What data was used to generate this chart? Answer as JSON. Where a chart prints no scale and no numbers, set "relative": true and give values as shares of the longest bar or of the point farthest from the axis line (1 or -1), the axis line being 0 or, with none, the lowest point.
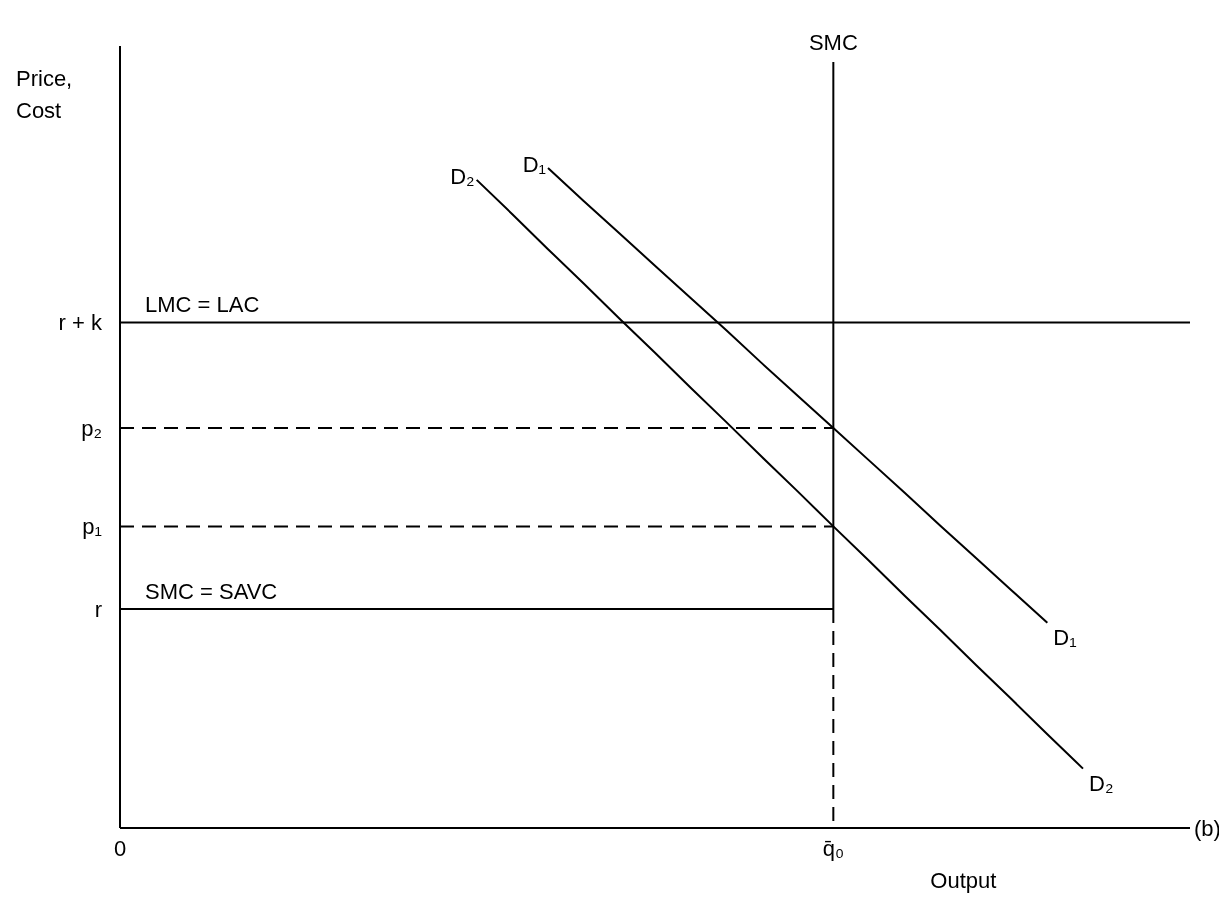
{
  "chart_data": {
    "type": "line",
    "relative": true,
    "xlabel": "Output",
    "ylabel": "Price, Cost",
    "categories": [
      "0",
      null,
      null,
      null,
      null,
      null,
      null,
      null,
      null,
      null,
      null,
      null,
      null,
      null,
      null,
      null,
      null,
      null,
      null,
      null,
      "q̄₀",
      null,
      null,
      null,
      null,
      null,
      null,
      null,
      null,
      null,
      null
    ],
    "series": [
      {
        "name": "SMC = SAVC",
        "color": "#000000",
        "values": [
          0.332,
          0.332,
          0.332,
          0.332,
          0.332,
          0.332,
          0.332,
          0.332,
          0.332,
          0.332,
          0.332,
          0.332,
          0.332,
          0.332,
          0.332,
          0.332,
          0.332,
          0.332,
          0.332,
          0.332,
          0.332,
          null,
          null,
          null,
          null,
          null,
          null,
          null,
          null,
          null,
          null
        ]
      },
      {
        "name": "LMC = LAC",
        "color": "#000000",
        "values": [
          0.766,
          0.766,
          0.766,
          0.766,
          0.766,
          0.766,
          0.766,
          0.766,
          0.766,
          0.766,
          0.766,
          0.766,
          0.766,
          0.766,
          0.766,
          0.766,
          0.766,
          0.766,
          0.766,
          0.766,
          0.766,
          0.766,
          0.766,
          0.766,
          0.766,
          0.766,
          0.766,
          0.766,
          0.766,
          0.766,
          0.766
        ]
      },
      {
        "name": "D₁",
        "color": "#000000",
        "values": [
          null,
          null,
          null,
          null,
          null,
          null,
          null,
          null,
          null,
          null,
          null,
          null,
          1.0,
          0.95,
          0.901,
          0.852,
          0.803,
          0.754,
          0.704,
          0.655,
          0.606,
          0.557,
          0.508,
          0.458,
          0.409,
          0.36,
          0.311,
          null,
          null,
          null,
          null
        ]
      },
      {
        "name": "D₂",
        "color": "#000000",
        "values": [
          null,
          null,
          null,
          null,
          null,
          null,
          null,
          null,
          null,
          null,
          0.982,
          0.93,
          0.877,
          0.825,
          0.772,
          0.72,
          0.667,
          0.615,
          0.562,
          0.51,
          0.457,
          0.405,
          0.352,
          0.3,
          0.247,
          0.195,
          0.142,
          0.09,
          null,
          null,
          null
        ]
      },
      {
        "color": "#000000",
        "line_style": "dashed",
        "values": [
          0.606,
          0.606,
          0.606,
          0.606,
          0.606,
          0.606,
          0.606,
          0.606,
          0.606,
          0.606,
          0.606,
          0.606,
          0.606,
          0.606,
          0.606,
          0.606,
          0.606,
          0.606,
          0.606,
          0.606,
          0.606,
          null,
          null,
          null,
          null,
          null,
          null,
          null,
          null,
          null,
          null
        ]
      },
      {
        "color": "#000000",
        "line_style": "dashed",
        "values": [
          0.457,
          0.457,
          0.457,
          0.457,
          0.457,
          0.457,
          0.457,
          0.457,
          0.457,
          0.457,
          0.457,
          0.457,
          0.457,
          0.457,
          0.457,
          0.457,
          0.457,
          0.457,
          0.457,
          0.457,
          0.457,
          null,
          null,
          null,
          null,
          null,
          null,
          null,
          null,
          null,
          null
        ]
      }
    ],
    "ref_lines": [
      {
        "axis": "x",
        "value": "q̄₀",
        "label": "SMC"
      }
    ],
    "annotations": [
      "(b)",
      "r",
      "p₁",
      "p₂",
      "r + k"
    ]
  }
}
